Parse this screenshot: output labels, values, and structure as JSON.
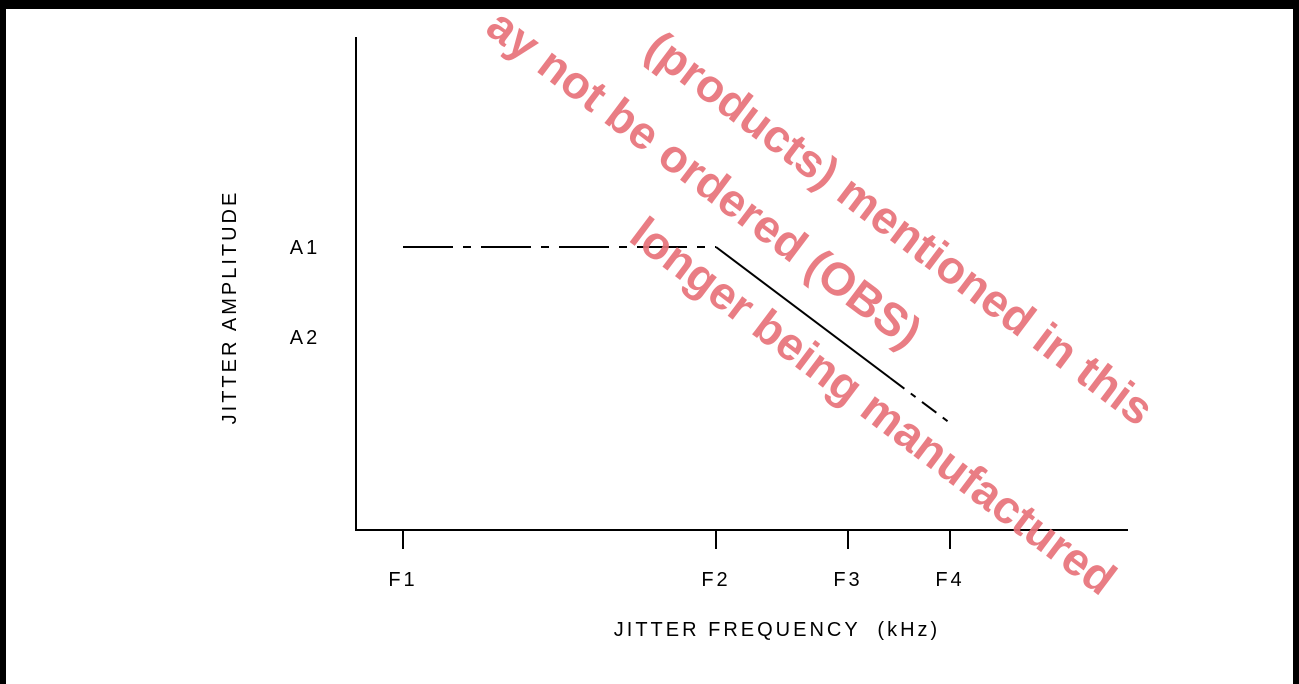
{
  "chart_data": {
    "type": "line",
    "title": "",
    "xlabel": "JITTER FREQUENCY  (kHz)",
    "ylabel": "JITTER AMPLITUDE",
    "x_ticks": [
      "F1",
      "F2",
      "F3",
      "F4"
    ],
    "y_levels": [
      "A1",
      "A2"
    ],
    "series": [
      {
        "points": [
          {
            "x": "F1",
            "y": "A1"
          },
          {
            "x": "F2",
            "y": "A1"
          },
          {
            "x": "F4",
            "y": "below A2"
          }
        ],
        "line_style": "dash-dot, solid between F2 and F3"
      }
    ],
    "grid": false,
    "legend": "none"
  },
  "watermark": {
    "lines": [
      "(products) mentioned in this",
      "ay not be ordered (OBS)",
      "longer being manufactured"
    ],
    "color": "#e8737a"
  }
}
